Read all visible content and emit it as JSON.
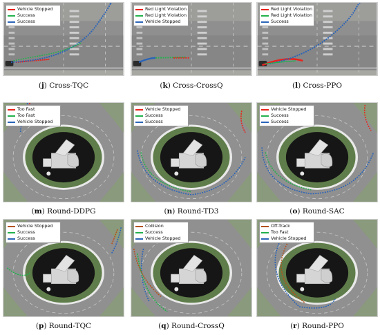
{
  "panels": [
    {
      "letter": "j",
      "name": "Cross-TQC",
      "scene": "cross",
      "legend": [
        {
          "label": "Vehicle Stopped",
          "color": "#e8231c"
        },
        {
          "label": "Success",
          "color": "#22b14c"
        },
        {
          "label": "Success",
          "color": "#2a64b8"
        }
      ]
    },
    {
      "letter": "k",
      "name": "Cross-CrossQ",
      "scene": "cross",
      "legend": [
        {
          "label": "Red Light Violation",
          "color": "#e8231c"
        },
        {
          "label": "Red Light Violation",
          "color": "#22b14c"
        },
        {
          "label": "Vehicle Stopped",
          "color": "#2a64b8"
        }
      ]
    },
    {
      "letter": "l",
      "name": "Cross-PPO",
      "scene": "cross",
      "legend": [
        {
          "label": "Red Light Violation",
          "color": "#e8231c"
        },
        {
          "label": "Red Light Violation",
          "color": "#22b14c"
        },
        {
          "label": "Success",
          "color": "#2a64b8"
        }
      ]
    },
    {
      "letter": "m",
      "name": "Round-DDPG",
      "scene": "round",
      "legend": [
        {
          "label": "Too Fast",
          "color": "#e8231c"
        },
        {
          "label": "Too Fast",
          "color": "#22b14c"
        },
        {
          "label": "Vehicle Stopped",
          "color": "#2a64b8"
        }
      ]
    },
    {
      "letter": "n",
      "name": "Round-TD3",
      "scene": "round",
      "legend": [
        {
          "label": "Vehicle Stopped",
          "color": "#e8231c"
        },
        {
          "label": "Success",
          "color": "#22b14c"
        },
        {
          "label": "Success",
          "color": "#2a64b8"
        }
      ]
    },
    {
      "letter": "o",
      "name": "Round-SAC",
      "scene": "round",
      "legend": [
        {
          "label": "Vehicle Stopped",
          "color": "#e8231c"
        },
        {
          "label": "Success",
          "color": "#22b14c"
        },
        {
          "label": "Success",
          "color": "#2a64b8"
        }
      ]
    },
    {
      "letter": "p",
      "name": "Round-TQC",
      "scene": "round",
      "legend": [
        {
          "label": "Vehicle Stopped",
          "color": "#b5521b"
        },
        {
          "label": "Success",
          "color": "#22b14c"
        },
        {
          "label": "Success",
          "color": "#2a64b8"
        }
      ]
    },
    {
      "letter": "q",
      "name": "Round-CrossQ",
      "scene": "round",
      "legend": [
        {
          "label": "Collision",
          "color": "#b5521b"
        },
        {
          "label": "Success",
          "color": "#22b14c"
        },
        {
          "label": "Vehicle Stopped",
          "color": "#2a64b8"
        }
      ]
    },
    {
      "letter": "r",
      "name": "Round-PPO",
      "scene": "round",
      "legend": [
        {
          "label": "Off-Track",
          "color": "#b5521b"
        },
        {
          "label": "Too Fast",
          "color": "#22b14c"
        },
        {
          "label": "Vehicle Stopped",
          "color": "#2a64b8"
        }
      ]
    }
  ]
}
